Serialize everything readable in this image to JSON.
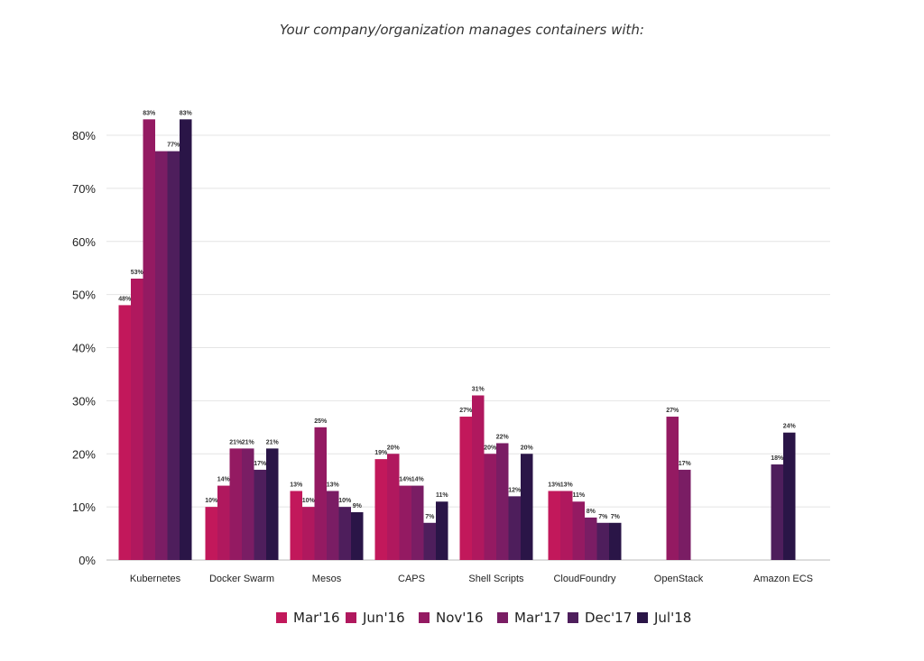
{
  "chart_data": {
    "type": "bar",
    "title": "Your company/organization manages containers with:",
    "xlabel": "",
    "ylabel": "",
    "ylim": [
      0,
      85
    ],
    "yticks": [
      "0%",
      "10%",
      "20%",
      "30%",
      "40%",
      "50%",
      "60%",
      "70%",
      "80%"
    ],
    "grid": true,
    "legend_position": "bottom",
    "categories": [
      "Kubernetes",
      "Docker Swarm",
      "Mesos",
      "CAPS",
      "Shell Scripts",
      "CloudFoundry",
      "OpenStack",
      "Amazon ECS"
    ],
    "series": [
      {
        "name": "Mar'16",
        "color": "#c2185b",
        "values": [
          48,
          10,
          13,
          19,
          27,
          13,
          null,
          null
        ]
      },
      {
        "name": "Jun'16",
        "color": "#b0185e",
        "values": [
          53,
          14,
          10,
          20,
          31,
          13,
          null,
          null
        ]
      },
      {
        "name": "Nov'16",
        "color": "#941a62",
        "values": [
          83,
          21,
          25,
          14,
          20,
          11,
          27,
          null
        ]
      },
      {
        "name": "Mar'17",
        "color": "#7a1d64",
        "values": [
          77,
          21,
          13,
          14,
          22,
          8,
          17,
          null
        ]
      },
      {
        "name": "Dec'17",
        "color": "#4e1e5c",
        "values": [
          77,
          17,
          10,
          7,
          12,
          7,
          null,
          18
        ]
      },
      {
        "name": "Jul'18",
        "color": "#2a1547",
        "values": [
          83,
          21,
          9,
          11,
          20,
          7,
          null,
          24
        ]
      }
    ],
    "data_labels": [
      [
        "48%",
        "10%",
        "13%",
        "19%",
        "27%",
        "13%",
        null,
        null
      ],
      [
        "53%",
        "14%",
        "10%",
        "20%",
        "31%",
        "13%",
        null,
        null
      ],
      [
        "83%",
        "21%",
        "25%",
        "14%",
        "20%",
        "11%",
        "27%",
        null
      ],
      [
        null,
        "21%",
        "13%",
        "14%",
        "22%",
        "8%",
        "17%",
        null
      ],
      [
        "77%",
        "17%",
        "10%",
        "7%",
        "12%",
        "7%",
        null,
        "18%"
      ],
      [
        "83%",
        "21%",
        "9%",
        "11%",
        "20%",
        "7%",
        null,
        "24%"
      ]
    ]
  }
}
